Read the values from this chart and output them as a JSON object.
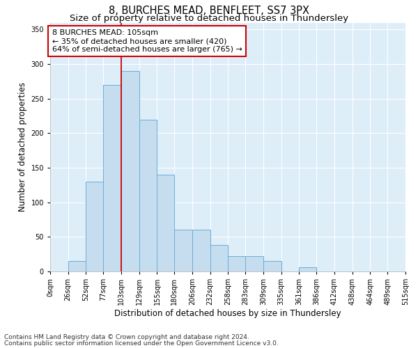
{
  "title": "8, BURCHES MEAD, BENFLEET, SS7 3PX",
  "subtitle": "Size of property relative to detached houses in Thundersley",
  "xlabel": "Distribution of detached houses by size in Thundersley",
  "ylabel": "Number of detached properties",
  "footnote1": "Contains HM Land Registry data © Crown copyright and database right 2024.",
  "footnote2": "Contains public sector information licensed under the Open Government Licence v3.0.",
  "bar_edges": [
    0,
    26,
    52,
    77,
    103,
    129,
    155,
    180,
    206,
    232,
    258,
    283,
    309,
    335,
    361,
    386,
    412,
    438,
    464,
    489,
    515
  ],
  "bar_heights": [
    0,
    15,
    130,
    270,
    290,
    220,
    140,
    60,
    60,
    38,
    22,
    22,
    15,
    0,
    6,
    0,
    0,
    0,
    0,
    0
  ],
  "bar_color": "#c6ddf0",
  "bar_edge_color": "#6aaed6",
  "property_line_x": 103,
  "property_line_color": "#cc0000",
  "ylim": [
    0,
    360
  ],
  "yticks": [
    0,
    50,
    100,
    150,
    200,
    250,
    300,
    350
  ],
  "annotation_text": "8 BURCHES MEAD: 105sqm\n← 35% of detached houses are smaller (420)\n64% of semi-detached houses are larger (765) →",
  "annotation_box_color": "#cc0000",
  "annotation_box_fill": "#ffffff",
  "plot_bg_color": "#ddeef9",
  "grid_color": "#ffffff",
  "title_fontsize": 10.5,
  "subtitle_fontsize": 9.5,
  "axis_label_fontsize": 8.5,
  "annotation_fontsize": 8,
  "tick_fontsize": 7,
  "footnote_fontsize": 6.5
}
